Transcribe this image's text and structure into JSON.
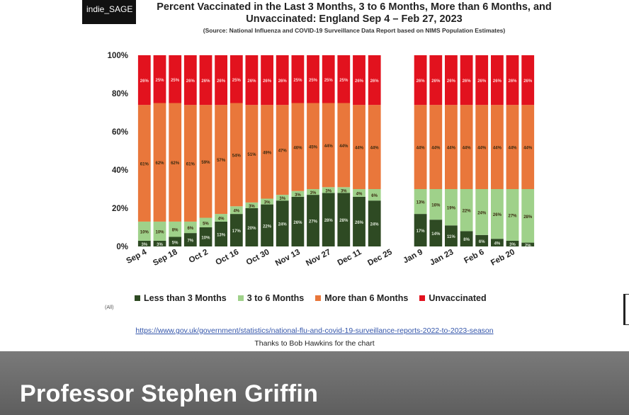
{
  "logo": {
    "text": "indie_SAGE"
  },
  "header": {
    "title": "Percent Vaccinated in the Last 3 Months, 3 to 6 Months, More than 6 Months, and Unvaccinated: England Sep 4 – Feb 27, 2023",
    "source": "(Source: National Influenza and COVID-19 Surveillance Data Report based on NIMS Population Estimates)"
  },
  "chart_data": {
    "type": "bar",
    "stacked": true,
    "y_format": "percent",
    "ylim": [
      0,
      100
    ],
    "y_ticks": [
      0,
      20,
      40,
      60,
      80,
      100
    ],
    "y_tick_labels": [
      "0%",
      "20%",
      "40%",
      "60%",
      "80%",
      "100%"
    ],
    "x_tick_labels": [
      "Sep 4",
      "Sep 18",
      "Oct 2",
      "Oct 16",
      "Oct 30",
      "Nov 13",
      "Nov 27",
      "Dec 11",
      "Dec 25",
      "Jan 9",
      "Jan 23",
      "Feb 6",
      "Feb 20"
    ],
    "categories": [
      "Sep 4",
      "Sep 11",
      "Sep 18",
      "Sep 25",
      "Oct 2",
      "Oct 9",
      "Oct 16",
      "Oct 23",
      "Oct 30",
      "Nov 6",
      "Nov 13",
      "Nov 20",
      "Nov 27",
      "Dec 4",
      "Dec 11",
      "Dec 18",
      "Dec 25",
      "Jan 1",
      "Jan 9",
      "Jan 16",
      "Jan 23",
      "Jan 30",
      "Feb 6",
      "Feb 13",
      "Feb 20",
      "Feb 27"
    ],
    "series": [
      {
        "name": "Less than 3 Months",
        "color": "#2e4a23",
        "values": [
          3,
          3,
          5,
          7,
          10,
          13,
          17,
          20,
          22,
          24,
          26,
          27,
          28,
          28,
          26,
          24,
          null,
          null,
          17,
          14,
          11,
          8,
          6,
          4,
          3,
          2
        ],
        "labels": [
          "3%",
          "3%",
          "5%",
          "7%",
          "10%",
          "13%",
          "17%",
          "20%",
          "22%",
          "24%",
          "26%",
          "27%",
          "28%",
          "28%",
          "26%",
          "24%",
          "",
          "",
          "17%",
          "14%",
          "11%",
          "8%",
          "6%",
          "4%",
          "3%",
          "2%"
        ]
      },
      {
        "name": "3 to 6 Months",
        "color": "#9fd18a",
        "values": [
          10,
          10,
          8,
          6,
          5,
          4,
          4,
          3,
          3,
          3,
          3,
          3,
          3,
          3,
          4,
          6,
          null,
          null,
          13,
          16,
          19,
          22,
          24,
          26,
          27,
          28
        ],
        "labels": [
          "10%",
          "10%",
          "8%",
          "6%",
          "5%",
          "4%",
          "4%",
          "3%",
          "3%",
          "3%",
          "3%",
          "3%",
          "3%",
          "3%",
          "4%",
          "6%",
          "",
          "",
          "13%",
          "16%",
          "19%",
          "22%",
          "24%",
          "26%",
          "27%",
          "28%"
        ]
      },
      {
        "name": "More than 6 Months",
        "color": "#e9773b",
        "values": [
          61,
          62,
          62,
          61,
          59,
          57,
          54,
          51,
          49,
          47,
          46,
          45,
          44,
          44,
          44,
          44,
          null,
          null,
          44,
          44,
          44,
          44,
          44,
          44,
          44,
          44
        ],
        "labels": [
          "61%",
          "62%",
          "62%",
          "61%",
          "59%",
          "57%",
          "54%",
          "51%",
          "49%",
          "47%",
          "46%",
          "45%",
          "44%",
          "44%",
          "44%",
          "44%",
          "",
          "",
          "44%",
          "44%",
          "44%",
          "44%",
          "44%",
          "44%",
          "44%",
          "44%"
        ]
      },
      {
        "name": "Unvaccinated",
        "color": "#e2121e",
        "values": [
          26,
          25,
          25,
          26,
          26,
          26,
          25,
          26,
          26,
          26,
          25,
          25,
          25,
          25,
          26,
          26,
          null,
          null,
          26,
          26,
          26,
          26,
          26,
          26,
          26,
          26
        ],
        "labels": [
          "26%",
          "25%",
          "25%",
          "26%",
          "26%",
          "26%",
          "25%",
          "26%",
          "26%",
          "26%",
          "25%",
          "25%",
          "25%",
          "25%",
          "26%",
          "26%",
          "",
          "",
          "26%",
          "26%",
          "26%",
          "26%",
          "26%",
          "26%",
          "26%",
          "26%"
        ]
      }
    ],
    "legend_position": "bottom",
    "grid": false
  },
  "legend": {
    "items": [
      {
        "label": "Less than 3 Months",
        "color": "#2e4a23"
      },
      {
        "label": "3 to 6 Months",
        "color": "#9fd18a"
      },
      {
        "label": "More than 6 Months",
        "color": "#e9773b"
      },
      {
        "label": "Unvaccinated",
        "color": "#e2121e"
      }
    ]
  },
  "filter_label": "(All)",
  "footer_link": "https://www.gov.uk/government/statistics/national-flu-and-covid-19-surveillance-reports-2022-to-2023-season",
  "thanks": "Thanks to Bob Hawkins for the chart",
  "presenter": {
    "name": "Professor Stephen Griffin"
  }
}
